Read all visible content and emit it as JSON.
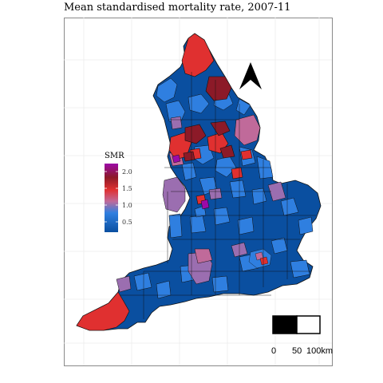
{
  "title": "Mean standardised mortality rate, 2007-11",
  "legend": {
    "title": "SMR",
    "ticks": [
      "2.0",
      "1.5",
      "1.0",
      "0.5"
    ],
    "gradient_colors": [
      "#9c0aa8",
      "#8c1a28",
      "#e03030",
      "#c06a9a",
      "#2f7fe0",
      "#0a4fa0"
    ]
  },
  "scale_bar": {
    "labels": [
      "0",
      "50",
      "100km"
    ]
  },
  "colors": {
    "low": "#0a4fa0",
    "mid_low": "#2f7fe0",
    "mid": "#9b6eb0",
    "high": "#e03030",
    "very_high": "#8c1a28",
    "extreme": "#9c0aa8",
    "panel_border": "#8a8a8a",
    "grid": "#ececec"
  }
}
